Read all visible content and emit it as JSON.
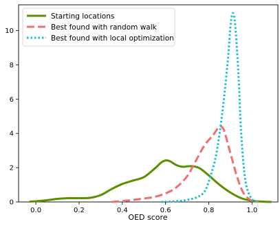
{
  "chart_data": {
    "type": "line",
    "title": "",
    "xlabel": "OED score",
    "ylabel": "",
    "xlim": [
      -0.08,
      1.12
    ],
    "ylim": [
      0,
      11.5
    ],
    "xticks": [
      0.0,
      0.2,
      0.4,
      0.6,
      0.8,
      1.0
    ],
    "xtick_labels": [
      "0.0",
      "0.2",
      "0.4",
      "0.6",
      "0.8",
      "1.0"
    ],
    "yticks": [
      0,
      2,
      4,
      6,
      8,
      10
    ],
    "ytick_labels": [
      "0",
      "2",
      "4",
      "6",
      "8",
      "10"
    ],
    "grid": false,
    "legend_position": "upper-left",
    "series": [
      {
        "name": "Starting locations",
        "color": "#5a8f00",
        "dash": "solid",
        "x": [
          -0.03,
          0.0,
          0.05,
          0.1,
          0.15,
          0.2,
          0.25,
          0.3,
          0.35,
          0.4,
          0.45,
          0.5,
          0.55,
          0.58,
          0.6,
          0.62,
          0.65,
          0.68,
          0.7,
          0.73,
          0.76,
          0.8,
          0.85,
          0.9,
          0.95,
          1.0,
          1.05,
          1.09
        ],
        "y": [
          0.02,
          0.04,
          0.1,
          0.18,
          0.22,
          0.22,
          0.24,
          0.4,
          0.75,
          1.05,
          1.25,
          1.45,
          1.95,
          2.3,
          2.42,
          2.38,
          2.15,
          2.05,
          2.08,
          2.08,
          1.95,
          1.55,
          1.0,
          0.55,
          0.22,
          0.07,
          0.02,
          0.0
        ]
      },
      {
        "name": "Best found with random walk",
        "color": "#f07070",
        "dash": "dashed",
        "x": [
          0.35,
          0.4,
          0.45,
          0.5,
          0.55,
          0.6,
          0.65,
          0.7,
          0.74,
          0.78,
          0.82,
          0.85,
          0.87,
          0.89,
          0.91,
          0.93,
          0.95,
          0.97,
          1.0,
          1.03
        ],
        "y": [
          0.0,
          0.05,
          0.12,
          0.2,
          0.3,
          0.5,
          0.85,
          1.5,
          2.4,
          3.3,
          3.9,
          4.4,
          4.2,
          3.3,
          2.4,
          1.5,
          0.8,
          0.35,
          0.07,
          0.0
        ]
      },
      {
        "name": "Best found with local optimization",
        "color": "#17becf",
        "dash": "dotted",
        "x": [
          0.58,
          0.65,
          0.7,
          0.75,
          0.78,
          0.8,
          0.83,
          0.85,
          0.87,
          0.89,
          0.9,
          0.91,
          0.92,
          0.93,
          0.94,
          0.95,
          0.97,
          1.0,
          1.03
        ],
        "y": [
          0.0,
          0.05,
          0.12,
          0.3,
          0.6,
          1.2,
          2.5,
          4.0,
          6.0,
          8.5,
          10.2,
          11.0,
          10.6,
          9.0,
          6.8,
          4.0,
          1.2,
          0.15,
          0.0
        ]
      }
    ]
  }
}
